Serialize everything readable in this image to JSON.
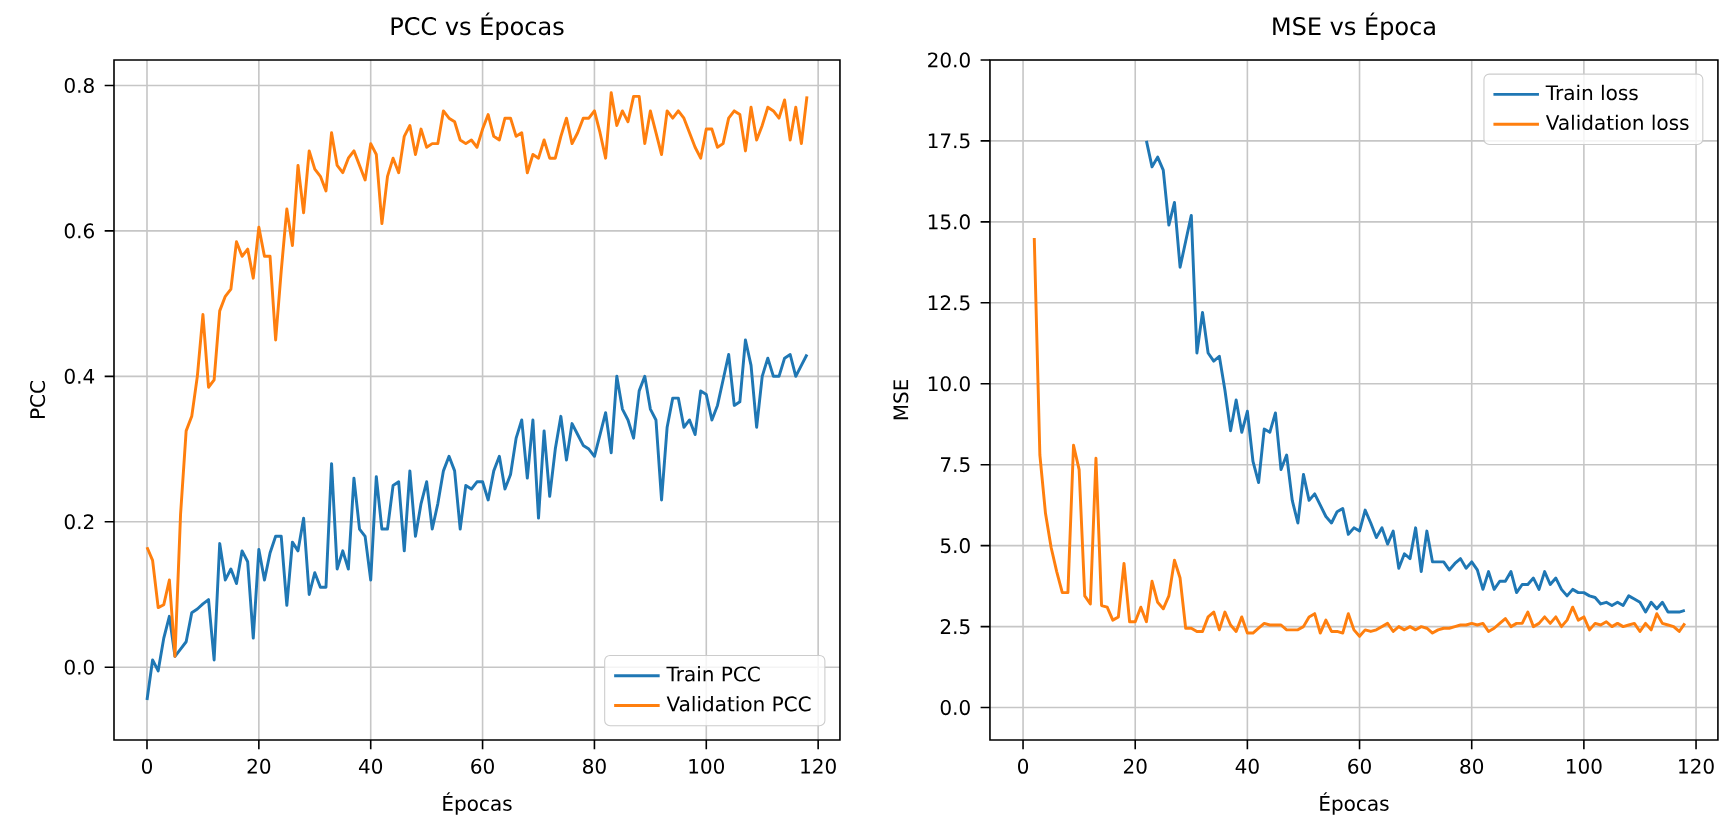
{
  "chart_data": [
    {
      "type": "line",
      "title": "PCC vs Épocas",
      "xlabel": "Épocas",
      "ylabel": "PCC",
      "legend": "bottom right",
      "grid": true,
      "xlim": [
        -5.9,
        123.9
      ],
      "ylim": [
        -0.1,
        0.835
      ],
      "xticks": [
        0,
        20,
        40,
        60,
        80,
        100,
        120
      ],
      "yticks": [
        {
          "value": 0,
          "label": "0.0"
        },
        {
          "value": 0.2,
          "label": "0.2"
        },
        {
          "value": 0.4,
          "label": "0.4"
        },
        {
          "value": 0.6,
          "label": "0.6"
        },
        {
          "value": 0.8,
          "label": "0.8"
        }
      ],
      "x": [
        0,
        1,
        2,
        3,
        4,
        5,
        6,
        7,
        8,
        9,
        10,
        11,
        12,
        13,
        14,
        15,
        16,
        17,
        18,
        19,
        20,
        21,
        22,
        23,
        24,
        25,
        26,
        27,
        28,
        29,
        30,
        31,
        32,
        33,
        34,
        35,
        36,
        37,
        38,
        39,
        40,
        41,
        42,
        43,
        44,
        45,
        46,
        47,
        48,
        49,
        50,
        51,
        52,
        53,
        54,
        55,
        56,
        57,
        58,
        59,
        60,
        61,
        62,
        63,
        64,
        65,
        66,
        67,
        68,
        69,
        70,
        71,
        72,
        73,
        74,
        75,
        76,
        77,
        78,
        79,
        80,
        81,
        82,
        83,
        84,
        85,
        86,
        87,
        88,
        89,
        90,
        91,
        92,
        93,
        94,
        95,
        96,
        97,
        98,
        99,
        100,
        101,
        102,
        103,
        104,
        105,
        106,
        107,
        108,
        109,
        110,
        111,
        112,
        113,
        114,
        115,
        116,
        117,
        118
      ],
      "series": [
        {
          "name": "Train PCC",
          "color": "#1f77b4",
          "values": [
            -0.045,
            0.01,
            -0.005,
            0.04,
            0.07,
            0.015,
            0.025,
            0.035,
            0.075,
            0.08,
            0.087,
            0.093,
            0.01,
            0.17,
            0.12,
            0.135,
            0.115,
            0.16,
            0.145,
            0.04,
            0.162,
            0.12,
            0.157,
            0.18,
            0.18,
            0.085,
            0.172,
            0.16,
            0.205,
            0.1,
            0.13,
            0.11,
            0.11,
            0.28,
            0.135,
            0.16,
            0.135,
            0.26,
            0.19,
            0.18,
            0.12,
            0.262,
            0.19,
            0.19,
            0.25,
            0.255,
            0.16,
            0.27,
            0.18,
            0.225,
            0.255,
            0.19,
            0.225,
            0.27,
            0.29,
            0.27,
            0.19,
            0.25,
            0.245,
            0.255,
            0.255,
            0.23,
            0.27,
            0.29,
            0.245,
            0.265,
            0.315,
            0.34,
            0.26,
            0.34,
            0.205,
            0.325,
            0.235,
            0.3,
            0.345,
            0.285,
            0.335,
            0.32,
            0.305,
            0.3,
            0.29,
            0.32,
            0.35,
            0.295,
            0.4,
            0.355,
            0.34,
            0.315,
            0.38,
            0.4,
            0.355,
            0.34,
            0.23,
            0.33,
            0.37,
            0.37,
            0.33,
            0.34,
            0.32,
            0.38,
            0.375,
            0.34,
            0.36,
            0.395,
            0.43,
            0.36,
            0.365,
            0.45,
            0.415,
            0.33,
            0.4,
            0.425,
            0.4,
            0.4,
            0.425,
            0.43,
            0.4,
            0.415,
            0.43
          ]
        },
        {
          "name": "Validation PCC",
          "color": "#ff7f0e",
          "values": [
            0.165,
            0.147,
            0.082,
            0.086,
            0.12,
            0.015,
            0.21,
            0.325,
            0.345,
            0.4,
            0.485,
            0.385,
            0.395,
            0.49,
            0.51,
            0.52,
            0.585,
            0.565,
            0.575,
            0.535,
            0.605,
            0.565,
            0.565,
            0.45,
            0.545,
            0.63,
            0.58,
            0.69,
            0.625,
            0.71,
            0.685,
            0.675,
            0.655,
            0.735,
            0.69,
            0.68,
            0.7,
            0.71,
            0.69,
            0.67,
            0.72,
            0.705,
            0.61,
            0.675,
            0.7,
            0.68,
            0.73,
            0.745,
            0.705,
            0.74,
            0.715,
            0.72,
            0.72,
            0.765,
            0.755,
            0.75,
            0.725,
            0.72,
            0.725,
            0.715,
            0.74,
            0.76,
            0.73,
            0.725,
            0.755,
            0.755,
            0.73,
            0.735,
            0.68,
            0.705,
            0.7,
            0.725,
            0.7,
            0.7,
            0.73,
            0.755,
            0.72,
            0.735,
            0.755,
            0.755,
            0.765,
            0.735,
            0.7,
            0.79,
            0.745,
            0.765,
            0.75,
            0.785,
            0.785,
            0.72,
            0.765,
            0.735,
            0.705,
            0.765,
            0.755,
            0.765,
            0.755,
            0.735,
            0.715,
            0.7,
            0.74,
            0.74,
            0.715,
            0.72,
            0.755,
            0.765,
            0.76,
            0.71,
            0.77,
            0.725,
            0.745,
            0.77,
            0.765,
            0.755,
            0.78,
            0.725,
            0.77,
            0.72,
            0.785
          ]
        }
      ]
    },
    {
      "type": "line",
      "title": "MSE vs Época",
      "xlabel": "Épocas",
      "ylabel": "MSE",
      "legend": "top right",
      "grid": true,
      "xlim": [
        -5.9,
        123.9
      ],
      "ylim": [
        -1.0,
        20
      ],
      "xticks": [
        0,
        20,
        40,
        60,
        80,
        100,
        120
      ],
      "yticks": [
        {
          "value": 0,
          "label": "0.0"
        },
        {
          "value": 2.5,
          "label": "2.5"
        },
        {
          "value": 5,
          "label": "5.0"
        },
        {
          "value": 7.5,
          "label": "7.5"
        },
        {
          "value": 10,
          "label": "10.0"
        },
        {
          "value": 12.5,
          "label": "12.5"
        },
        {
          "value": 15,
          "label": "15.0"
        },
        {
          "value": 17.5,
          "label": "17.5"
        },
        {
          "value": 20,
          "label": "20.0"
        }
      ],
      "series": [
        {
          "name": "Train loss",
          "color": "#1f77b4",
          "x": [
            22,
            23,
            24,
            25,
            26,
            27,
            28,
            29,
            30,
            31,
            32,
            33,
            34,
            35,
            36,
            37,
            38,
            39,
            40,
            41,
            42,
            43,
            44,
            45,
            46,
            47,
            48,
            49,
            50,
            51,
            52,
            53,
            54,
            55,
            56,
            57,
            58,
            59,
            60,
            61,
            62,
            63,
            64,
            65,
            66,
            67,
            68,
            69,
            70,
            71,
            72,
            73,
            74,
            75,
            76,
            77,
            78,
            79,
            80,
            81,
            82,
            83,
            84,
            85,
            86,
            87,
            88,
            89,
            90,
            91,
            92,
            93,
            94,
            95,
            96,
            97,
            98,
            99,
            100,
            101,
            102,
            103,
            104,
            105,
            106,
            107,
            108,
            109,
            110,
            111,
            112,
            113,
            114,
            115,
            116,
            117,
            118
          ],
          "values": [
            17.5,
            16.7,
            17.0,
            16.6,
            14.9,
            15.6,
            13.6,
            14.4,
            15.2,
            10.95,
            12.2,
            10.95,
            10.7,
            10.85,
            9.8,
            8.55,
            9.5,
            8.5,
            9.15,
            7.6,
            6.95,
            8.6,
            8.5,
            9.1,
            7.35,
            7.8,
            6.4,
            5.7,
            7.2,
            6.4,
            6.6,
            6.25,
            5.9,
            5.7,
            6.05,
            6.15,
            5.35,
            5.55,
            5.45,
            6.1,
            5.7,
            5.25,
            5.55,
            5.05,
            5.45,
            4.3,
            4.75,
            4.6,
            5.55,
            4.2,
            5.45,
            4.5,
            4.5,
            4.5,
            4.25,
            4.45,
            4.6,
            4.3,
            4.5,
            4.25,
            3.65,
            4.2,
            3.65,
            3.9,
            3.9,
            4.2,
            3.55,
            3.8,
            3.8,
            4.0,
            3.65,
            4.2,
            3.8,
            4.0,
            3.65,
            3.45,
            3.65,
            3.55,
            3.55,
            3.45,
            3.4,
            3.2,
            3.25,
            3.15,
            3.25,
            3.15,
            3.45,
            3.35,
            3.25,
            2.95,
            3.25,
            3.05,
            3.25,
            2.95,
            2.95,
            2.95,
            3.0
          ]
        },
        {
          "name": "Validation loss",
          "color": "#ff7f0e",
          "x": [
            2,
            3,
            4,
            5,
            6,
            7,
            8,
            9,
            10,
            11,
            12,
            13,
            14,
            15,
            16,
            17,
            18,
            19,
            20,
            21,
            22,
            23,
            24,
            25,
            26,
            27,
            28,
            29,
            30,
            31,
            32,
            33,
            34,
            35,
            36,
            37,
            38,
            39,
            40,
            41,
            42,
            43,
            44,
            45,
            46,
            47,
            48,
            49,
            50,
            51,
            52,
            53,
            54,
            55,
            56,
            57,
            58,
            59,
            60,
            61,
            62,
            63,
            64,
            65,
            66,
            67,
            68,
            69,
            70,
            71,
            72,
            73,
            74,
            75,
            76,
            77,
            78,
            79,
            80,
            81,
            82,
            83,
            84,
            85,
            86,
            87,
            88,
            89,
            90,
            91,
            92,
            93,
            94,
            95,
            96,
            97,
            98,
            99,
            100,
            101,
            102,
            103,
            104,
            105,
            106,
            107,
            108,
            109,
            110,
            111,
            112,
            113,
            114,
            115,
            116,
            117,
            118
          ],
          "values": [
            14.5,
            7.8,
            6.0,
            4.95,
            4.2,
            3.55,
            3.55,
            8.1,
            7.35,
            3.45,
            3.2,
            7.7,
            3.15,
            3.1,
            2.7,
            2.8,
            4.45,
            2.65,
            2.65,
            3.1,
            2.65,
            3.9,
            3.25,
            3.05,
            3.45,
            4.55,
            4.0,
            2.45,
            2.45,
            2.35,
            2.35,
            2.8,
            2.95,
            2.4,
            2.95,
            2.55,
            2.35,
            2.8,
            2.3,
            2.3,
            2.45,
            2.6,
            2.55,
            2.55,
            2.55,
            2.4,
            2.4,
            2.4,
            2.5,
            2.8,
            2.9,
            2.3,
            2.7,
            2.35,
            2.35,
            2.3,
            2.9,
            2.4,
            2.2,
            2.4,
            2.35,
            2.4,
            2.5,
            2.6,
            2.35,
            2.5,
            2.4,
            2.5,
            2.4,
            2.5,
            2.45,
            2.3,
            2.4,
            2.45,
            2.45,
            2.5,
            2.55,
            2.55,
            2.6,
            2.55,
            2.6,
            2.35,
            2.45,
            2.6,
            2.75,
            2.5,
            2.6,
            2.6,
            2.95,
            2.5,
            2.6,
            2.8,
            2.6,
            2.8,
            2.5,
            2.7,
            3.1,
            2.7,
            2.8,
            2.4,
            2.6,
            2.55,
            2.65,
            2.5,
            2.6,
            2.5,
            2.55,
            2.6,
            2.35,
            2.6,
            2.4,
            2.9,
            2.6,
            2.55,
            2.5,
            2.35,
            2.6
          ]
        }
      ]
    }
  ]
}
